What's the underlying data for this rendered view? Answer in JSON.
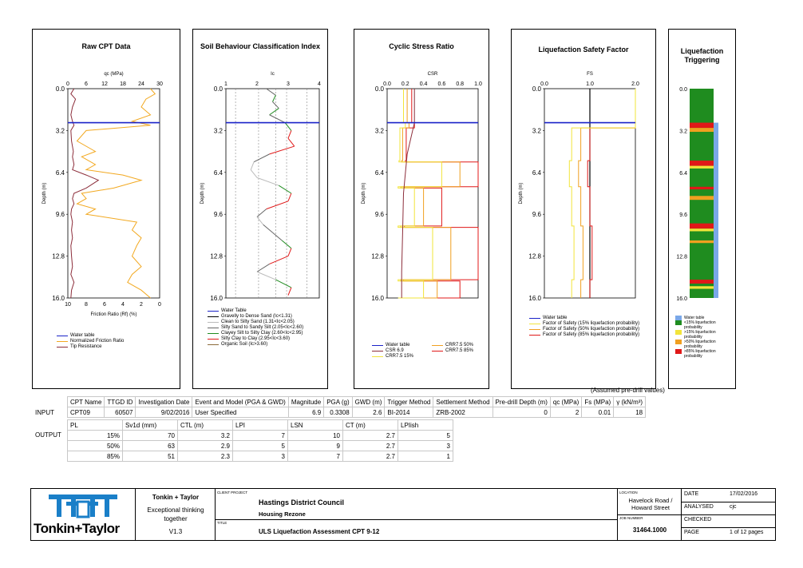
{
  "colors": {
    "water_table": "#1a22c8",
    "tip": "#8c2d3a",
    "fric": "#f2a81f",
    "crr15": "#f2e43a",
    "crr50": "#f0a020",
    "crr85": "#e01818",
    "green": "#1f8c1f",
    "blue_bar": "#7aa8e8"
  },
  "depth_ticks": [
    "0.0",
    "3.2",
    "6.4",
    "9.6",
    "12.8",
    "16.0"
  ],
  "depth_axis_label": "Depth (m)",
  "panels": {
    "raw": {
      "title": "Raw CPT Data",
      "top_label": "qc (MPa)",
      "top_ticks": [
        "0",
        "6",
        "12",
        "18",
        "24",
        "30"
      ],
      "bottom_label": "Friction Ratio (Rf) (%)",
      "bottom_ticks": [
        "10",
        "8",
        "6",
        "4",
        "2",
        "0"
      ],
      "legend": [
        "Water table",
        "Normalized Friction Ratio",
        "Tip Resistance"
      ]
    },
    "sbt": {
      "title": "Soil Behaviour Classification Index",
      "top_label": "Ic",
      "top_ticks": [
        "1",
        "2",
        "3",
        "4"
      ],
      "legend": [
        "Water Table",
        "Gravelly to Dense Sand (Ic<1.31)",
        "Clean to Silty Sand (1.31<Ic<2.05)",
        "Silty Sand to Sandy Silt (2.05<Ic<2.60)",
        "Clayey Silt to Silty Clay (2.60<Ic<2.95)",
        "Silty Clay to Clay (2.95<Ic<3.60)",
        "Organic Soil (Ic>3.60)"
      ]
    },
    "csr": {
      "title": "Cyclic Stress Ratio",
      "top_label": "CSR",
      "top_ticks": [
        "0.0",
        "0.2",
        "0.4",
        "0.6",
        "0.8",
        "1.0"
      ],
      "legend": [
        "Water table",
        "CSR 6.9",
        "CRR7.5 15%",
        "CRR7.5 50%",
        "CRR7.5 85%"
      ]
    },
    "fs": {
      "title": "Liquefaction Safety Factor",
      "top_label": "FS",
      "top_ticks": [
        "0.0",
        "1.0",
        "2.0"
      ],
      "legend": [
        "Water table",
        "Factor of Safety (15% liquefaction probability)",
        "Factor of Safety (50% liquefaction probability)",
        "Factor of Safety (85% liquefaction probability)"
      ]
    },
    "trig": {
      "title": "Liquefaction Triggering",
      "legend": [
        "Water table",
        "<15% liquefaction probability",
        ">15% liquefaction probability",
        ">50% liquefaction probability",
        ">85% liquefaction probability"
      ]
    }
  },
  "chart_data": [
    {
      "type": "line",
      "title": "Raw CPT Data",
      "ylabel": "Depth (m)",
      "ylim": [
        16.0,
        0.0
      ],
      "water_table_depth": 2.6,
      "series": [
        {
          "name": "Tip Resistance",
          "axis": "qc (MPa)",
          "xlim": [
            0,
            30
          ],
          "y": [
            0,
            0.4,
            0.8,
            1.4,
            2.0,
            2.5,
            2.8,
            3.2,
            4.0,
            4.8,
            5.2,
            5.8,
            6.2,
            6.6,
            7.0,
            7.6,
            8.0,
            8.4,
            8.8,
            9.2,
            9.6,
            10.2,
            10.8,
            11.4,
            12.0,
            12.8,
            13.6,
            14.2,
            14.8,
            15.4,
            16.0
          ],
          "x": [
            2,
            1,
            2.5,
            1.5,
            1,
            1.5,
            2,
            1,
            1.2,
            1.8,
            1.5,
            2,
            1.5,
            6,
            10,
            6,
            2,
            1.5,
            2,
            1.2,
            1,
            1.5,
            1.2,
            1.5,
            1,
            1.2,
            1.5,
            1,
            2,
            1.2,
            1
          ]
        },
        {
          "name": "Normalized Friction Ratio",
          "axis": "Friction Ratio (Rf) (%)",
          "xlim": [
            10,
            0
          ],
          "y": [
            0,
            0.4,
            0.8,
            1.4,
            2.0,
            2.5,
            2.8,
            3.2,
            4.0,
            4.8,
            5.2,
            5.8,
            6.2,
            6.6,
            7.0,
            7.6,
            8.0,
            8.4,
            8.8,
            9.2,
            9.6,
            10.2,
            10.8,
            11.4,
            12.0,
            12.8,
            13.6,
            14.2,
            14.8,
            15.4,
            16.0
          ],
          "x": [
            1,
            0.5,
            1.5,
            2,
            1,
            3,
            1,
            8,
            9,
            7,
            8.5,
            7,
            8,
            4,
            2,
            5,
            8.5,
            8,
            9,
            7,
            8,
            2.5,
            3,
            2,
            2.5,
            3,
            2,
            3,
            3.5,
            2,
            1
          ]
        }
      ]
    },
    {
      "type": "line",
      "title": "Soil Behaviour Classification Index",
      "ylabel": "Depth (m)",
      "xlabel": "Ic",
      "xlim": [
        1,
        4
      ],
      "ylim": [
        16.0,
        0.0
      ],
      "water_table_depth": 2.6,
      "series": [
        {
          "y": [
            0,
            0.5,
            1.0,
            1.5,
            2.0,
            2.6,
            3.2,
            3.8,
            4.4,
            5.0,
            5.6,
            6.2,
            6.8,
            7.4,
            8.0,
            8.6,
            9.2,
            9.8,
            10.4,
            11.0,
            11.6,
            12.2,
            12.8,
            13.4,
            14.0,
            14.6,
            15.2,
            15.8
          ],
          "x": [
            2.3,
            2.6,
            2.5,
            2.7,
            2.4,
            2.9,
            3.1,
            3.0,
            3.2,
            2.4,
            1.9,
            1.8,
            2.0,
            2.7,
            3.1,
            3.0,
            2.3,
            2.0,
            2.2,
            2.5,
            2.8,
            3.1,
            3.0,
            2.4,
            2.0,
            2.6,
            3.1,
            3.0
          ]
        }
      ]
    },
    {
      "type": "line",
      "title": "Cyclic Stress Ratio",
      "ylabel": "Depth (m)",
      "xlabel": "CSR",
      "xlim": [
        0.0,
        1.0
      ],
      "ylim": [
        16.0,
        0.0
      ],
      "water_table_depth": 2.6,
      "series": [
        {
          "name": "CSR 6.9",
          "y": [
            0,
            2.6,
            5.0,
            8.0,
            11.0,
            14.0,
            16.0
          ],
          "x": [
            0.3,
            0.3,
            0.22,
            0.18,
            0.17,
            0.16,
            0.16
          ]
        },
        {
          "name": "CRR7.5 15%",
          "y": [
            0,
            2.6,
            3.0,
            5.5,
            5.6,
            7.5,
            7.6,
            10.5,
            10.6,
            14.6,
            14.7,
            16.0
          ],
          "x": [
            0.18,
            0.2,
            0.14,
            0.13,
            0.6,
            0.12,
            0.3,
            0.12,
            0.5,
            0.12,
            0.4,
            0.12
          ]
        },
        {
          "name": "CRR7.5 50%",
          "y": [
            0,
            2.6,
            3.0,
            5.5,
            5.6,
            7.5,
            7.6,
            10.5,
            10.6,
            14.6,
            14.7,
            16.0
          ],
          "x": [
            0.22,
            0.24,
            0.17,
            0.16,
            0.8,
            0.15,
            0.4,
            0.15,
            0.7,
            0.15,
            0.55,
            0.15
          ]
        },
        {
          "name": "CRR7.5 85%",
          "y": [
            0,
            2.6,
            3.0,
            5.5,
            5.6,
            7.5,
            7.6,
            10.5,
            10.6,
            14.6,
            14.7,
            16.0
          ],
          "x": [
            0.27,
            0.3,
            0.21,
            0.2,
            1.0,
            0.19,
            0.6,
            0.19,
            1.0,
            0.18,
            0.8,
            0.18
          ]
        }
      ]
    },
    {
      "type": "line",
      "title": "Liquefaction Safety Factor",
      "ylabel": "Depth (m)",
      "xlabel": "FS",
      "xlim": [
        0.0,
        2.0
      ],
      "ylim": [
        16.0,
        0.0
      ],
      "water_table_depth": 2.6,
      "series": [
        {
          "name": "Factor of Safety (15% liquefaction probability)",
          "y": [
            0,
            2.6,
            3.0,
            5.5,
            7.5,
            10.5,
            14.6,
            16.0
          ],
          "x": [
            2.0,
            2.0,
            0.6,
            0.55,
            0.6,
            0.65,
            0.6,
            0.6
          ]
        },
        {
          "name": "Factor of Safety (50% liquefaction probability)",
          "y": [
            0,
            2.6,
            3.0,
            5.5,
            7.5,
            10.5,
            14.6,
            16.0
          ],
          "x": [
            2.0,
            2.0,
            0.8,
            0.75,
            0.8,
            0.85,
            0.8,
            0.8
          ]
        },
        {
          "name": "Factor of Safety (85% liquefaction probability)",
          "y": [
            0,
            2.6,
            3.0,
            5.5,
            7.5,
            10.5,
            14.6,
            16.0
          ],
          "x": [
            2.0,
            2.0,
            1.0,
            0.95,
            1.0,
            1.05,
            1.0,
            1.0
          ]
        }
      ]
    }
  ],
  "table": {
    "note": "(Assumed pre-drill values)",
    "input_label": "INPUT",
    "output_label": "OUTPUT",
    "input_headers": [
      "CPT Name",
      "TTGD ID",
      "Investigation Date",
      "Event and Model (PGA & GWD)",
      "Magnitude",
      "PGA (g)",
      "GWD (m)",
      "Trigger Method",
      "Settlement Method",
      "Pre-drill Depth (m)",
      "qc (MPa)",
      "Fs (MPa)",
      "γ (kN/m³)"
    ],
    "input_values": [
      "CPT09",
      "60507",
      "9/02/2016",
      "User Specified",
      "6.9",
      "0.3308",
      "2.6",
      "BI-2014",
      "ZRB-2002",
      "0",
      "2",
      "0.01",
      "18"
    ],
    "output_headers": [
      "PL",
      "Sv1d (mm)",
      "CTL (m)",
      "LPI",
      "LSN",
      "CT (m)",
      "LPIish"
    ],
    "output_rows": [
      [
        "15%",
        "70",
        "3.2",
        "7",
        "10",
        "2.7",
        "5"
      ],
      [
        "50%",
        "63",
        "2.9",
        "5",
        "9",
        "2.7",
        "3"
      ],
      [
        "85%",
        "51",
        "2.3",
        "3",
        "7",
        "2.7",
        "1"
      ]
    ]
  },
  "footer": {
    "company": "Tonkin+Taylor",
    "company_name": "Tonkin + Taylor",
    "tagline": "Exceptional thinking together",
    "version": "V1.3",
    "client_project_label": "CLIENT PROJECT",
    "client": "Hastings District Council",
    "project": "Housing Rezone",
    "title_label": "TITLE",
    "title": "ULS Liquefaction Assessment CPT 9-12",
    "location_label": "LOCATION",
    "location": "Havelock Road / Howard Street",
    "job_label": "JOB NUMBER",
    "job_number": "31464.1000",
    "date_label": "DATE",
    "date": "17/02/2016",
    "analysed_label": "ANALYSED",
    "analysed": "cjc",
    "checked_label": "CHECKED",
    "checked": "",
    "page_label": "PAGE",
    "page": "1 of 12 pages"
  }
}
